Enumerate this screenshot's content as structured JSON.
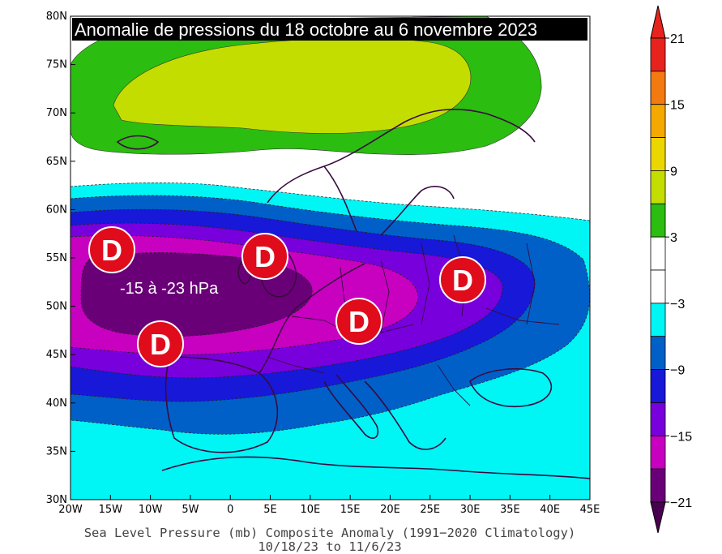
{
  "title": "Anomalie de pressions du 18 octobre au 6 novembre 2023",
  "caption_line1": "Sea Level Pressure (mb) Composite Anomaly (1991−2020 Climatology)",
  "caption_line2": "10/18/23   to 11/6/23",
  "range_label": "-15 à -23 hPa",
  "low_marker_letter": "D",
  "lat_ticks": [
    "30N",
    "35N",
    "40N",
    "45N",
    "50N",
    "55N",
    "60N",
    "65N",
    "70N",
    "75N",
    "80N"
  ],
  "lon_ticks": [
    "20W",
    "15W",
    "10W",
    "5W",
    "0",
    "5E",
    "10E",
    "15E",
    "20E",
    "25E",
    "30E",
    "35E",
    "40E",
    "45E"
  ],
  "colorbar": {
    "labels": [
      "21",
      "15",
      "9",
      "3",
      "−3",
      "−9",
      "−15",
      "−21"
    ],
    "colors": [
      "#e8231e",
      "#f27a10",
      "#f5a800",
      "#ecd600",
      "#c4dd00",
      "#2bbd10",
      "#ffffff",
      "#ffffff",
      "#00f5f5",
      "#0060c8",
      "#1818d8",
      "#7800dc",
      "#c800c0",
      "#6a0078"
    ],
    "top_arrow_color": "#e8231e",
    "bottom_arrow_color": "#4a0050"
  },
  "anomaly_colors": {
    "positive_outer": "#2bbd10",
    "positive_inner": "#c4dd00",
    "neg_3_9": "#00f5f5",
    "neg_9_12": "#0060c8",
    "neg_12_15": "#1818d8",
    "neg_15_18": "#7800dc",
    "neg_18_21": "#c800c0",
    "neg_21": "#6a0078",
    "low_marker": "#e00c1c",
    "coast": "#3a0a40"
  }
}
